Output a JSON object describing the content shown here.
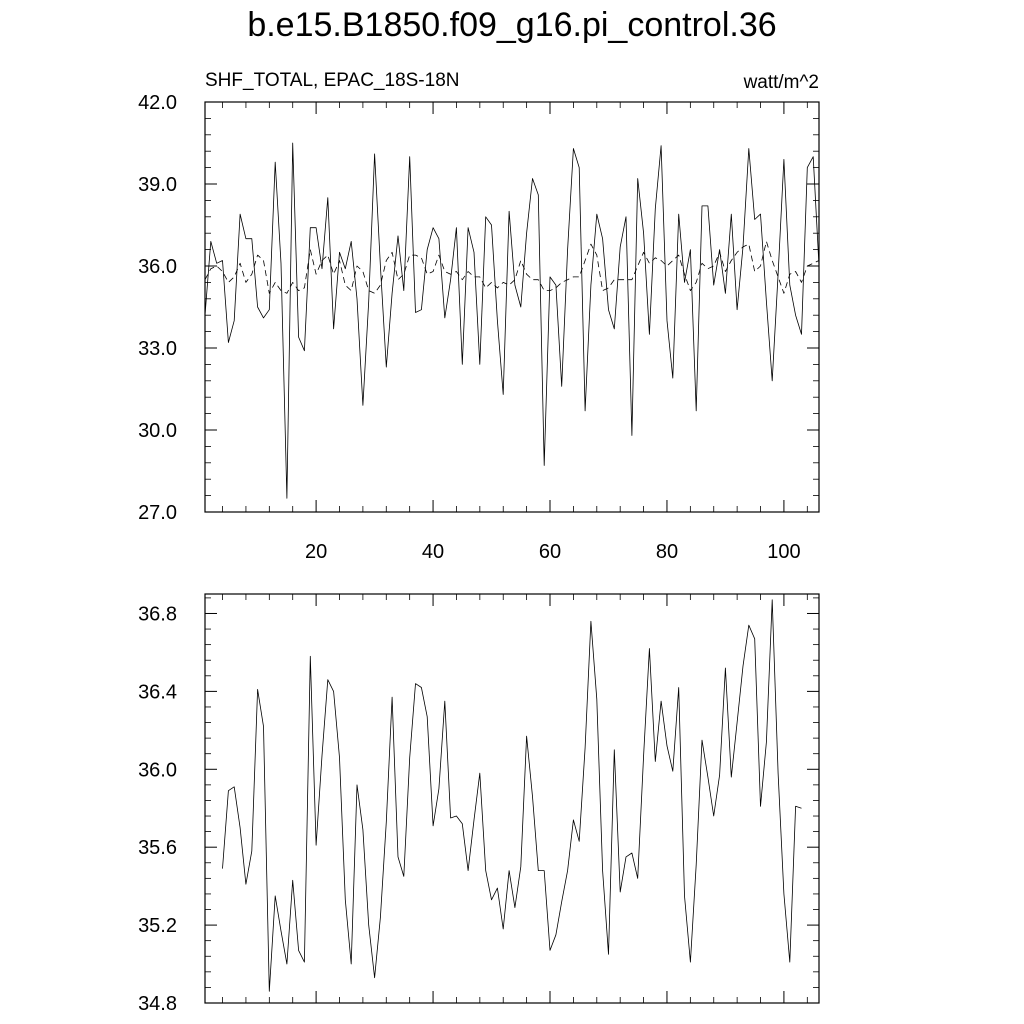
{
  "title": "b.e15.B1850.f09_g16.pi_control.36",
  "chart_data": [
    {
      "type": "line",
      "left_label": "SHF_TOTAL, EPAC_18S-18N",
      "right_label": "watt/m^2",
      "xlim": [
        1,
        106
      ],
      "ylim": [
        27.0,
        42.0
      ],
      "yticks": [
        27.0,
        30.0,
        33.0,
        36.0,
        39.0,
        42.0
      ],
      "ytick_labels": [
        "27.0",
        "30.0",
        "33.0",
        "36.0",
        "39.0",
        "42.0"
      ],
      "xticks": [
        20,
        40,
        60,
        80,
        100
      ],
      "xtick_labels": [
        "20",
        "40",
        "60",
        "80",
        "100"
      ],
      "grid": false,
      "series": [
        {
          "style": "solid",
          "x": [
            1,
            2,
            3,
            4,
            5,
            6,
            7,
            8,
            9,
            10,
            11,
            12,
            13,
            14,
            15,
            16,
            17,
            18,
            19,
            20,
            21,
            22,
            23,
            24,
            25,
            26,
            27,
            28,
            29,
            30,
            31,
            32,
            33,
            34,
            35,
            36,
            37,
            38,
            39,
            40,
            41,
            42,
            43,
            44,
            45,
            46,
            47,
            48,
            49,
            50,
            51,
            52,
            53,
            54,
            55,
            56,
            57,
            58,
            59,
            60,
            61,
            62,
            63,
            64,
            65,
            66,
            67,
            68,
            69,
            70,
            71,
            72,
            73,
            74,
            75,
            76,
            77,
            78,
            79,
            80,
            81,
            82,
            83,
            84,
            85,
            86,
            87,
            88,
            89,
            90,
            91,
            92,
            93,
            94,
            95,
            96,
            97,
            98,
            99,
            100,
            101,
            102,
            103,
            104,
            105,
            106
          ],
          "y": [
            34.2,
            36.9,
            36.1,
            36.2,
            33.2,
            34.0,
            37.9,
            37.0,
            37.0,
            34.5,
            34.1,
            34.4,
            39.8,
            36.1,
            27.5,
            40.5,
            33.4,
            32.9,
            37.4,
            37.4,
            35.9,
            38.5,
            33.7,
            36.5,
            35.9,
            36.9,
            34.8,
            30.9,
            34.7,
            40.1,
            36.0,
            32.3,
            35.0,
            37.1,
            35.1,
            40.0,
            34.3,
            34.4,
            36.6,
            37.4,
            37.0,
            34.1,
            35.5,
            37.4,
            32.4,
            37.4,
            36.5,
            32.4,
            37.8,
            37.5,
            34.0,
            31.3,
            38.0,
            35.3,
            34.5,
            37.2,
            39.2,
            38.6,
            28.7,
            35.6,
            35.3,
            31.6,
            36.6,
            40.3,
            39.6,
            30.7,
            35.3,
            37.9,
            37.0,
            34.4,
            33.7,
            36.7,
            37.8,
            29.8,
            39.2,
            37.2,
            33.5,
            38.1,
            40.4,
            34.0,
            31.9,
            37.9,
            35.4,
            36.6,
            30.7,
            38.2,
            38.2,
            35.3,
            36.6,
            35.0,
            37.9,
            34.4,
            36.7,
            40.3,
            37.7,
            37.9,
            34.7,
            31.8,
            35.7,
            39.9,
            35.3,
            34.2,
            33.5,
            39.6,
            40.0,
            36.0
          ]
        },
        {
          "style": "dashed",
          "x": [
            1,
            2,
            3,
            4,
            5,
            6,
            7,
            8,
            9,
            10,
            11,
            12,
            13,
            14,
            15,
            16,
            17,
            18,
            19,
            20,
            21,
            22,
            23,
            24,
            25,
            26,
            27,
            28,
            29,
            30,
            31,
            32,
            33,
            34,
            35,
            36,
            37,
            38,
            39,
            40,
            41,
            42,
            43,
            44,
            45,
            46,
            47,
            48,
            49,
            50,
            51,
            52,
            53,
            54,
            55,
            56,
            57,
            58,
            59,
            60,
            61,
            62,
            63,
            64,
            65,
            66,
            67,
            68,
            69,
            70,
            71,
            72,
            73,
            74,
            75,
            76,
            77,
            78,
            79,
            80,
            81,
            82,
            83,
            84,
            85,
            86,
            87,
            88,
            89,
            90,
            91,
            92,
            93,
            94,
            95,
            96,
            97,
            98,
            99,
            100,
            101,
            102,
            103,
            104,
            105,
            106
          ],
          "y": [
            35.5,
            35.9,
            36.0,
            35.8,
            35.4,
            35.6,
            36.1,
            35.4,
            35.7,
            36.4,
            36.2,
            35.0,
            35.4,
            35.1,
            35.0,
            35.4,
            35.1,
            35.2,
            36.6,
            35.7,
            36.2,
            36.4,
            35.7,
            36.2,
            35.3,
            35.1,
            36.0,
            35.8,
            35.1,
            35.0,
            35.3,
            36.2,
            36.5,
            35.5,
            35.7,
            36.4,
            36.4,
            36.3,
            35.7,
            35.8,
            36.4,
            35.8,
            35.7,
            35.8,
            35.5,
            35.8,
            35.6,
            35.6,
            35.2,
            35.4,
            35.2,
            35.4,
            35.3,
            35.5,
            36.2,
            35.7,
            35.5,
            35.5,
            35.1,
            35.1,
            35.2,
            35.4,
            35.5,
            35.6,
            35.6,
            36.2,
            36.8,
            36.4,
            35.1,
            35.2,
            35.5,
            35.5,
            35.5,
            35.5,
            36.0,
            36.5,
            36.1,
            36.3,
            36.2,
            36.0,
            36.2,
            36.4,
            35.7,
            35.1,
            35.4,
            36.1,
            35.9,
            36.0,
            36.5,
            35.8,
            36.2,
            36.5,
            36.7,
            36.8,
            35.8,
            36.0,
            36.9,
            36.2,
            35.6,
            35.0,
            35.7,
            35.8,
            35.4,
            36.0,
            36.1,
            36.2
          ]
        }
      ]
    },
    {
      "type": "line",
      "xlim": [
        1,
        106
      ],
      "ylim": [
        34.8,
        36.9
      ],
      "yticks": [
        34.8,
        35.2,
        35.6,
        36.0,
        36.4,
        36.8
      ],
      "ytick_labels": [
        "34.8",
        "35.2",
        "35.6",
        "36.0",
        "36.4",
        "36.8"
      ],
      "xticks": [
        20,
        40,
        60,
        80,
        100
      ],
      "xtick_labels": [],
      "grid": false,
      "series": [
        {
          "style": "solid",
          "x": [
            4,
            5,
            6,
            7,
            8,
            9,
            10,
            11,
            12,
            13,
            14,
            15,
            16,
            17,
            18,
            19,
            20,
            21,
            22,
            23,
            24,
            25,
            26,
            27,
            28,
            29,
            30,
            31,
            32,
            33,
            34,
            35,
            36,
            37,
            38,
            39,
            40,
            41,
            42,
            43,
            44,
            45,
            46,
            47,
            48,
            49,
            50,
            51,
            52,
            53,
            54,
            55,
            56,
            57,
            58,
            59,
            60,
            61,
            62,
            63,
            64,
            65,
            66,
            67,
            68,
            69,
            70,
            71,
            72,
            73,
            74,
            75,
            76,
            77,
            78,
            79,
            80,
            81,
            82,
            83,
            84,
            85,
            86,
            87,
            88,
            89,
            90,
            91,
            92,
            93,
            94,
            95,
            96,
            97,
            98,
            99,
            100,
            101,
            102,
            103
          ],
          "y": [
            35.49,
            35.89,
            35.91,
            35.7,
            35.41,
            35.58,
            36.41,
            36.22,
            34.86,
            35.35,
            35.17,
            35.0,
            35.43,
            35.07,
            35.01,
            36.58,
            35.61,
            36.07,
            36.46,
            36.4,
            36.06,
            35.33,
            35.0,
            35.92,
            35.69,
            35.2,
            34.93,
            35.24,
            35.73,
            36.37,
            35.55,
            35.45,
            36.06,
            36.44,
            36.42,
            36.27,
            35.71,
            35.9,
            36.35,
            35.75,
            35.76,
            35.72,
            35.48,
            35.74,
            35.98,
            35.48,
            35.33,
            35.39,
            35.18,
            35.48,
            35.29,
            35.5,
            36.17,
            35.86,
            35.48,
            35.48,
            35.07,
            35.15,
            35.32,
            35.48,
            35.74,
            35.63,
            36.11,
            36.76,
            36.36,
            35.48,
            35.05,
            36.1,
            35.37,
            35.55,
            35.57,
            35.44,
            36.07,
            36.62,
            36.04,
            36.35,
            36.12,
            35.99,
            36.42,
            35.35,
            35.01,
            35.51,
            36.15,
            35.96,
            35.76,
            35.97,
            36.52,
            35.96,
            36.24,
            36.53,
            36.74,
            36.67,
            35.81,
            36.14,
            36.87,
            35.98,
            35.36,
            35.01,
            35.81,
            35.8
          ]
        }
      ]
    }
  ]
}
